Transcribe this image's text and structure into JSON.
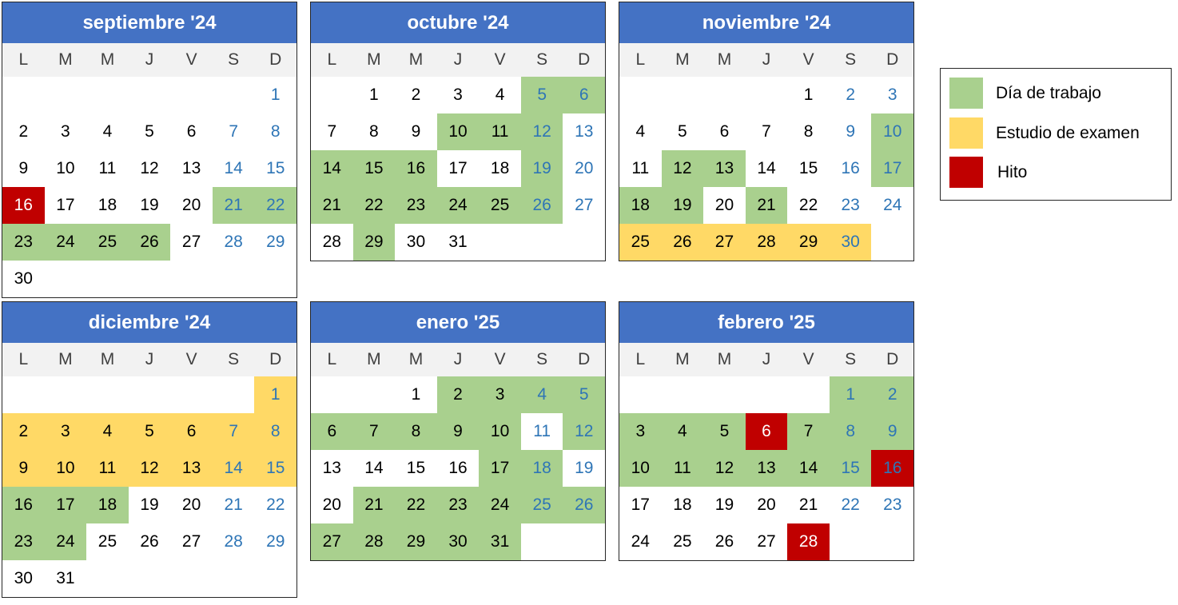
{
  "weekdays": [
    "L",
    "M",
    "M",
    "J",
    "V",
    "S",
    "D"
  ],
  "months": [
    {
      "title": "septiembre '24",
      "offset": 6,
      "days": 30,
      "work": [
        21,
        22,
        23,
        24,
        25,
        26
      ],
      "exam": [],
      "milestone": [
        16
      ]
    },
    {
      "title": "octubre '24",
      "offset": 1,
      "days": 31,
      "work": [
        5,
        6,
        10,
        11,
        12,
        14,
        15,
        16,
        19,
        21,
        22,
        23,
        24,
        25,
        26,
        29
      ],
      "exam": [],
      "milestone": []
    },
    {
      "title": "noviembre '24",
      "offset": 4,
      "days": 30,
      "work": [
        10,
        12,
        13,
        17,
        18,
        19,
        21
      ],
      "exam": [
        25,
        26,
        27,
        28,
        29,
        30
      ],
      "milestone": []
    },
    {
      "title": "diciembre '24",
      "offset": 6,
      "days": 31,
      "work": [
        16,
        17,
        18,
        23,
        24
      ],
      "exam": [
        1,
        2,
        3,
        4,
        5,
        6,
        7,
        8,
        9,
        10,
        11,
        12,
        13,
        14,
        15
      ],
      "milestone": []
    },
    {
      "title": "enero '25",
      "offset": 2,
      "days": 31,
      "work": [
        2,
        3,
        4,
        5,
        6,
        7,
        8,
        9,
        10,
        12,
        17,
        18,
        21,
        22,
        23,
        24,
        25,
        26,
        27,
        28,
        29,
        30,
        31
      ],
      "exam": [],
      "milestone": []
    },
    {
      "title": "febrero '25",
      "offset": 5,
      "days": 28,
      "work": [
        1,
        2,
        3,
        4,
        5,
        7,
        8,
        9,
        10,
        11,
        12,
        13,
        14,
        15
      ],
      "exam": [],
      "milestone": [
        6,
        16,
        28
      ]
    }
  ],
  "legend": {
    "work_label": "Día de trabajo",
    "exam_label": "Estudio de examen",
    "milestone_label": "Hito"
  },
  "colors": {
    "header": "#4472c4",
    "work": "#a9d08e",
    "exam": "#ffd966",
    "milestone": "#c00000",
    "weekend_text": "#2e75b6"
  }
}
